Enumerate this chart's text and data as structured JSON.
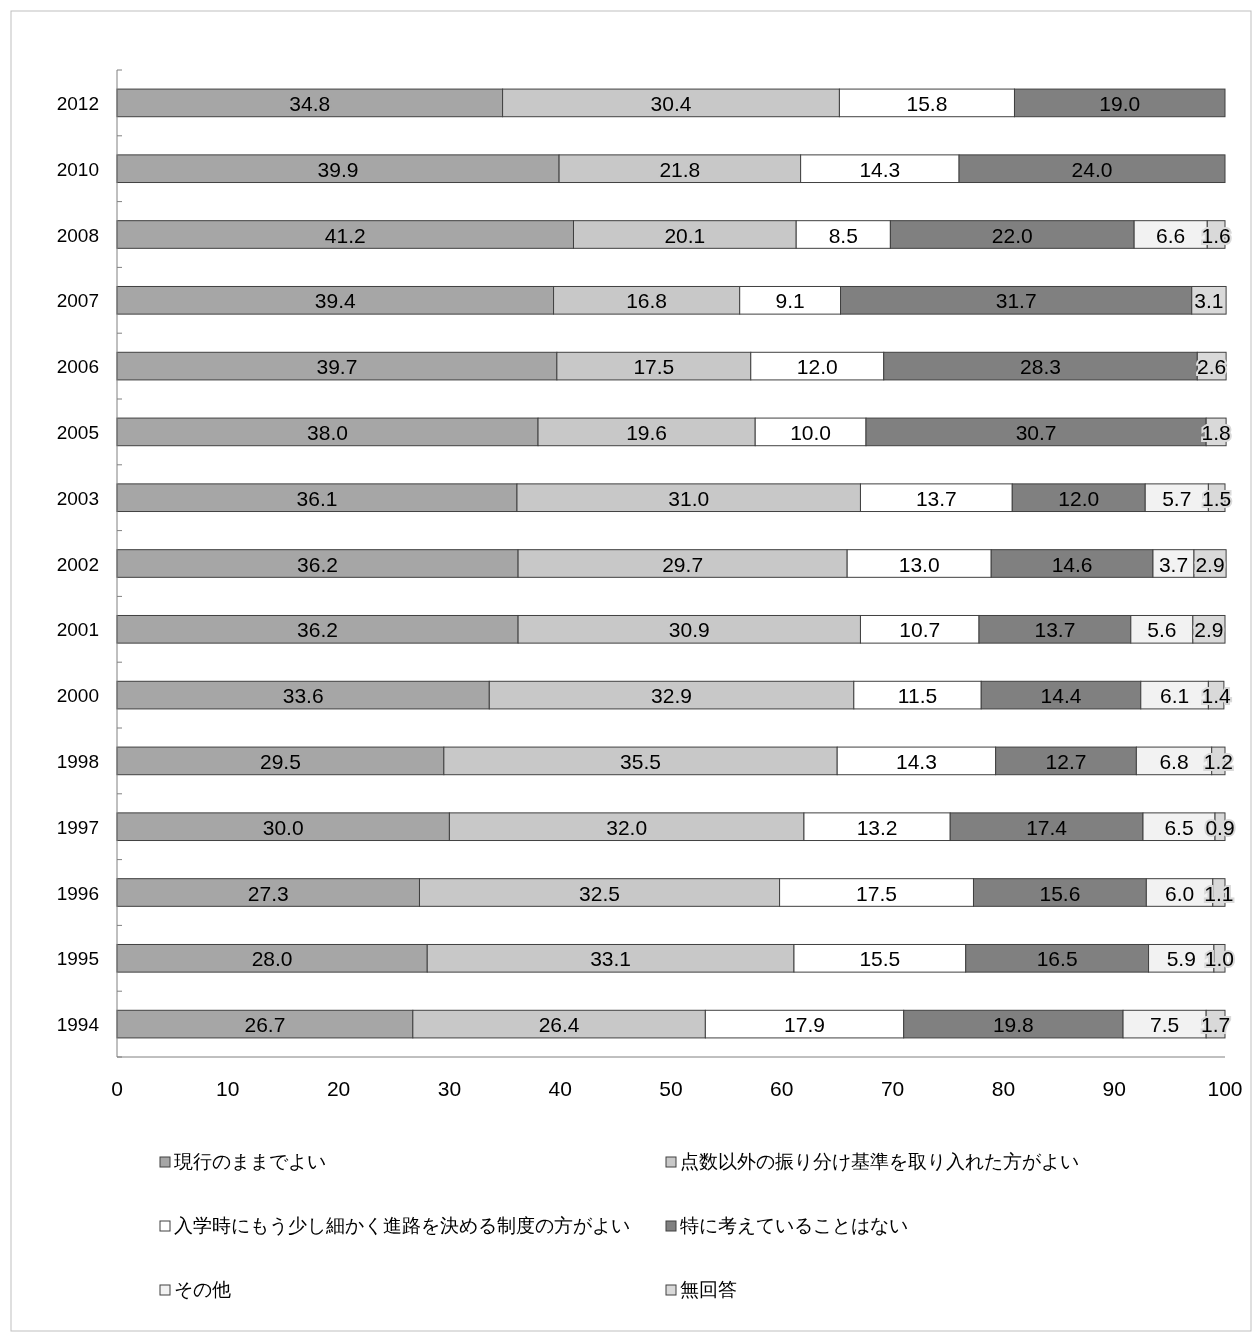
{
  "chart_data": {
    "type": "bar",
    "orientation": "horizontal",
    "stacked": true,
    "legend": "bottom",
    "grid": false,
    "categories": [
      "2012",
      "2010",
      "2008",
      "2007",
      "2006",
      "2005",
      "2003",
      "2002",
      "2001",
      "2000",
      "1998",
      "1997",
      "1996",
      "1995",
      "1994"
    ],
    "xlim": [
      0,
      100
    ],
    "xticks": [
      0,
      10,
      20,
      30,
      40,
      50,
      60,
      70,
      80,
      90,
      100
    ],
    "series": [
      {
        "name": "現行のままでよい",
        "color": "#a6a6a6",
        "values": [
          34.8,
          39.9,
          41.2,
          39.4,
          39.7,
          38.0,
          36.1,
          36.2,
          36.2,
          33.6,
          29.5,
          30.0,
          27.3,
          28.0,
          26.7
        ],
        "value_labels": [
          "34.8",
          "39.9",
          "41.2",
          "39.4",
          "39.7",
          "38.0",
          "36.1",
          "36.2",
          "36.2",
          "33.6",
          "29.5",
          "30.0",
          "27.3",
          "28.0",
          "26.7"
        ]
      },
      {
        "name": "点数以外の振り分け基準を取り入れた方がよい",
        "color": "#c8c8c8",
        "values": [
          30.4,
          21.8,
          20.1,
          16.8,
          17.5,
          19.6,
          31.0,
          29.7,
          30.9,
          32.9,
          35.5,
          32.0,
          32.5,
          33.1,
          26.4
        ],
        "value_labels": [
          "30.4",
          "21.8",
          "20.1",
          "16.8",
          "17.5",
          "19.6",
          "31.0",
          "29.7",
          "30.9",
          "32.9",
          "35.5",
          "32.0",
          "32.5",
          "33.1",
          "26.4"
        ]
      },
      {
        "name": "入学時にもう少し細かく進路を決める制度の方がよい",
        "color": "#ffffff",
        "values": [
          15.8,
          14.3,
          8.5,
          9.1,
          12.0,
          10.0,
          13.7,
          13.0,
          10.7,
          11.5,
          14.3,
          13.2,
          17.5,
          15.5,
          17.9
        ],
        "value_labels": [
          "15.8",
          "14.3",
          "8.5",
          "9.1",
          "12.0",
          "10.0",
          "13.7",
          "13.0",
          "10.7",
          "11.5",
          "14.3",
          "13.2",
          "17.5",
          "15.5",
          "17.9"
        ]
      },
      {
        "name": "特に考えていることはない",
        "color": "#808080",
        "values": [
          19.0,
          24.0,
          22.0,
          31.7,
          28.3,
          30.7,
          12.0,
          14.6,
          13.7,
          14.4,
          12.7,
          17.4,
          15.6,
          16.5,
          19.8
        ],
        "value_labels": [
          "19.0",
          "24.0",
          "22.0",
          "31.7",
          "28.3",
          "30.7",
          "12.0",
          "14.6",
          "13.7",
          "14.4",
          "12.7",
          "17.4",
          "15.6",
          "16.5",
          "19.8"
        ]
      },
      {
        "name": "その他",
        "color": "#f2f2f2",
        "values": [
          null,
          null,
          6.6,
          null,
          null,
          null,
          5.7,
          3.7,
          5.6,
          6.1,
          6.8,
          6.5,
          6.0,
          5.9,
          7.5
        ],
        "value_labels": [
          null,
          null,
          "6.6",
          null,
          null,
          null,
          "5.7",
          "3.7",
          "5.6",
          "6.1",
          "6.8",
          "6.5",
          "6.0",
          "5.9",
          "7.5"
        ]
      },
      {
        "name": "無回答",
        "color": "#d9d9d9",
        "values": [
          null,
          null,
          1.6,
          3.1,
          2.6,
          1.8,
          1.5,
          2.9,
          2.9,
          1.4,
          1.2,
          0.9,
          1.1,
          1.0,
          1.7
        ],
        "value_labels": [
          null,
          null,
          "1.6",
          "3.1",
          "2.6",
          "1.8",
          "1.5",
          "2.9",
          "2.9",
          "1.4",
          "1.2",
          "0.9",
          "1.1",
          "1.0",
          "1.7"
        ]
      }
    ]
  }
}
